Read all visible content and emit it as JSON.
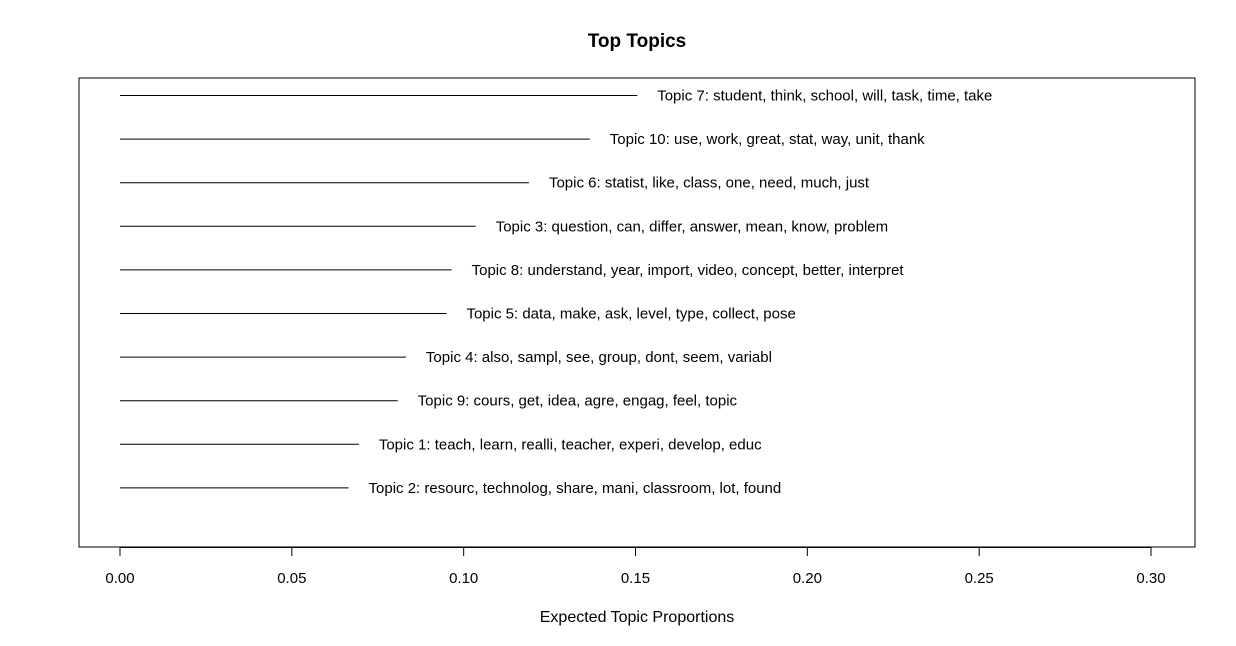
{
  "chart_data": {
    "type": "bar",
    "orientation": "horizontal",
    "title": "Top Topics",
    "xlabel": "Expected Topic Proportions",
    "ylabel": "",
    "xlim": [
      0.0,
      0.3
    ],
    "xticks": [
      "0.00",
      "0.05",
      "0.10",
      "0.15",
      "0.20",
      "0.25",
      "0.30"
    ],
    "grid": false,
    "categories": [
      "Topic 7: student, think, school, will, task, time, take",
      "Topic 10: use, work, great, stat, way, unit, thank",
      "Topic 6: statist, like, class, one, need, much, just",
      "Topic 3: question, can, differ, answer, mean, know, problem",
      "Topic 8: understand, year, import, video, concept, better, interpret",
      "Topic 5: data, make, ask, level, type, collect, pose",
      "Topic 4: also, sampl, see, group, dont, seem, variabl",
      "Topic 9: cours, get, idea, agre, engag, feel, topic",
      "Topic 1: teach, learn, realli, teacher, experi, develop, educ",
      "Topic 2: resourc, technolog, share, mani, classroom, lot, found"
    ],
    "values": [
      0.1505,
      0.1367,
      0.119,
      0.1035,
      0.0965,
      0.095,
      0.0832,
      0.0808,
      0.0695,
      0.0665
    ]
  }
}
